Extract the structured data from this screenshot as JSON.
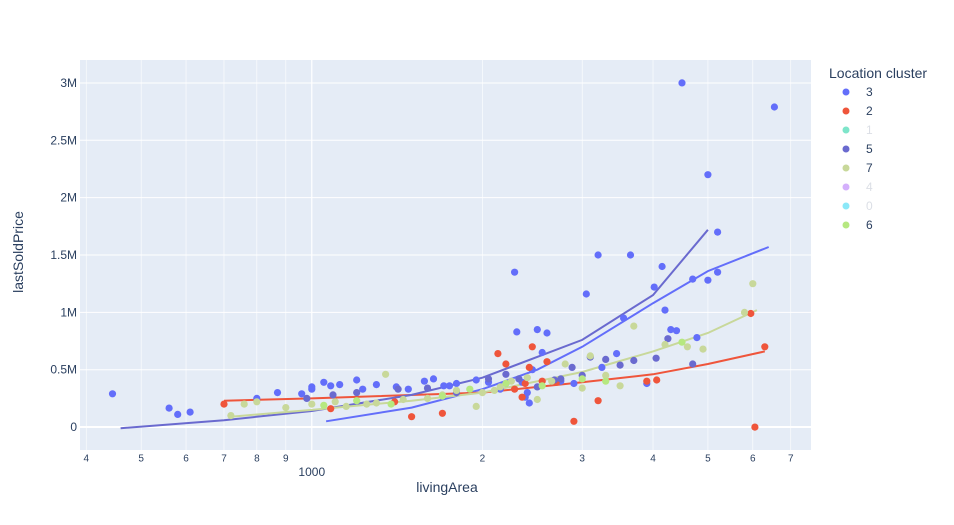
{
  "chart_data": {
    "type": "scatter",
    "xlabel": "livingArea",
    "ylabel": "lastSoldPrice",
    "x_scale": "log",
    "xlim": [
      390,
      7600
    ],
    "ylim": [
      -200000,
      3200000
    ],
    "grid": true,
    "legend_title": "Location cluster",
    "legend_position": "right",
    "x_major_ticks": [
      {
        "value": 1000,
        "label": "1000"
      }
    ],
    "x_minor_ticks": [
      {
        "value": 400,
        "label": "4"
      },
      {
        "value": 500,
        "label": "5"
      },
      {
        "value": 600,
        "label": "6"
      },
      {
        "value": 700,
        "label": "7"
      },
      {
        "value": 800,
        "label": "8"
      },
      {
        "value": 900,
        "label": "9"
      },
      {
        "value": 2000,
        "label": "2"
      },
      {
        "value": 3000,
        "label": "3"
      },
      {
        "value": 4000,
        "label": "4"
      },
      {
        "value": 5000,
        "label": "5"
      },
      {
        "value": 6000,
        "label": "6"
      },
      {
        "value": 7000,
        "label": "7"
      }
    ],
    "y_ticks": [
      {
        "value": 0,
        "label": "0"
      },
      {
        "value": 500000,
        "label": "0.5M"
      },
      {
        "value": 1000000,
        "label": "1M"
      },
      {
        "value": 1500000,
        "label": "1.5M"
      },
      {
        "value": 2000000,
        "label": "2M"
      },
      {
        "value": 2500000,
        "label": "2.5M"
      },
      {
        "value": 3000000,
        "label": "3M"
      }
    ],
    "series": [
      {
        "name": "3",
        "color": "#636efa",
        "visible": true,
        "points": [
          [
            445,
            290000
          ],
          [
            560,
            165000
          ],
          [
            580,
            110000
          ],
          [
            610,
            130000
          ],
          [
            800,
            250000
          ],
          [
            870,
            300000
          ],
          [
            960,
            290000
          ],
          [
            1000,
            330000
          ],
          [
            1000,
            350000
          ],
          [
            1050,
            390000
          ],
          [
            1080,
            360000
          ],
          [
            1120,
            370000
          ],
          [
            1200,
            410000
          ],
          [
            1230,
            330000
          ],
          [
            1300,
            370000
          ],
          [
            1410,
            350000
          ],
          [
            1480,
            330000
          ],
          [
            1580,
            400000
          ],
          [
            1640,
            420000
          ],
          [
            1710,
            360000
          ],
          [
            1750,
            360000
          ],
          [
            1800,
            380000
          ],
          [
            1950,
            410000
          ],
          [
            2050,
            390000
          ],
          [
            2150,
            330000
          ],
          [
            2200,
            380000
          ],
          [
            2280,
            1350000
          ],
          [
            2300,
            830000
          ],
          [
            2350,
            390000
          ],
          [
            2380,
            260000
          ],
          [
            2400,
            300000
          ],
          [
            2420,
            210000
          ],
          [
            2450,
            500000
          ],
          [
            2500,
            850000
          ],
          [
            2550,
            650000
          ],
          [
            2600,
            820000
          ],
          [
            2750,
            400000
          ],
          [
            2900,
            380000
          ],
          [
            3050,
            1160000
          ],
          [
            3200,
            1500000
          ],
          [
            3250,
            520000
          ],
          [
            3450,
            640000
          ],
          [
            3550,
            950000
          ],
          [
            3650,
            1500000
          ],
          [
            3900,
            380000
          ],
          [
            4020,
            1220000
          ],
          [
            4150,
            1400000
          ],
          [
            4200,
            1020000
          ],
          [
            4300,
            850000
          ],
          [
            4400,
            840000
          ],
          [
            4500,
            3000000
          ],
          [
            4700,
            1290000
          ],
          [
            4780,
            780000
          ],
          [
            5000,
            1280000
          ],
          [
            5000,
            2200000
          ],
          [
            5200,
            1350000
          ],
          [
            5200,
            1700000
          ],
          [
            6550,
            2790000
          ]
        ],
        "fit": [
          [
            1060,
            50000
          ],
          [
            1500,
            170000
          ],
          [
            2000,
            330000
          ],
          [
            2500,
            500000
          ],
          [
            3000,
            700000
          ],
          [
            4000,
            1080000
          ],
          [
            5000,
            1360000
          ],
          [
            6400,
            1570000
          ]
        ]
      },
      {
        "name": "2",
        "color": "#ef553b",
        "visible": true,
        "points": [
          [
            700,
            200000
          ],
          [
            1080,
            160000
          ],
          [
            1400,
            220000
          ],
          [
            1500,
            90000
          ],
          [
            1700,
            120000
          ],
          [
            2130,
            640000
          ],
          [
            2200,
            550000
          ],
          [
            2280,
            330000
          ],
          [
            2350,
            260000
          ],
          [
            2380,
            380000
          ],
          [
            2420,
            520000
          ],
          [
            2450,
            700000
          ],
          [
            2550,
            400000
          ],
          [
            2600,
            570000
          ],
          [
            2700,
            390000
          ],
          [
            2900,
            50000
          ],
          [
            3200,
            230000
          ],
          [
            3900,
            400000
          ],
          [
            4060,
            410000
          ],
          [
            5950,
            990000
          ],
          [
            6050,
            0
          ],
          [
            6300,
            700000
          ]
        ],
        "fit": [
          [
            700,
            230000
          ],
          [
            1000,
            250000
          ],
          [
            2000,
            300000
          ],
          [
            3000,
            390000
          ],
          [
            4000,
            460000
          ],
          [
            5000,
            550000
          ],
          [
            6300,
            660000
          ]
        ]
      },
      {
        "name": "1",
        "color": "#00cc96",
        "visible": false,
        "points": []
      },
      {
        "name": "5",
        "color": "#6a6acf",
        "visible": true,
        "points": [
          [
            980,
            250000
          ],
          [
            1090,
            280000
          ],
          [
            1200,
            300000
          ],
          [
            1420,
            330000
          ],
          [
            1600,
            340000
          ],
          [
            1800,
            300000
          ],
          [
            2050,
            420000
          ],
          [
            2200,
            460000
          ],
          [
            2320,
            420000
          ],
          [
            2500,
            350000
          ],
          [
            2680,
            410000
          ],
          [
            2750,
            420000
          ],
          [
            2880,
            520000
          ],
          [
            3000,
            450000
          ],
          [
            3100,
            610000
          ],
          [
            3300,
            590000
          ],
          [
            3500,
            540000
          ],
          [
            3700,
            580000
          ],
          [
            4050,
            600000
          ],
          [
            4250,
            770000
          ],
          [
            4700,
            550000
          ]
        ],
        "fit": [
          [
            460,
            -10000
          ],
          [
            700,
            60000
          ],
          [
            1000,
            140000
          ],
          [
            1500,
            280000
          ],
          [
            2000,
            430000
          ],
          [
            3000,
            760000
          ],
          [
            4000,
            1150000
          ],
          [
            5000,
            1720000
          ]
        ]
      },
      {
        "name": "7",
        "color": "#c8d89a",
        "visible": true,
        "points": [
          [
            720,
            100000
          ],
          [
            760,
            200000
          ],
          [
            800,
            220000
          ],
          [
            900,
            170000
          ],
          [
            1000,
            200000
          ],
          [
            1100,
            220000
          ],
          [
            1150,
            180000
          ],
          [
            1250,
            200000
          ],
          [
            1300,
            210000
          ],
          [
            1350,
            460000
          ],
          [
            1450,
            240000
          ],
          [
            1600,
            250000
          ],
          [
            1700,
            280000
          ],
          [
            1800,
            320000
          ],
          [
            1950,
            180000
          ],
          [
            2000,
            300000
          ],
          [
            2100,
            320000
          ],
          [
            2150,
            350000
          ],
          [
            2250,
            400000
          ],
          [
            2400,
            430000
          ],
          [
            2500,
            240000
          ],
          [
            2650,
            400000
          ],
          [
            2800,
            550000
          ],
          [
            3000,
            340000
          ],
          [
            3100,
            620000
          ],
          [
            3300,
            450000
          ],
          [
            3500,
            360000
          ],
          [
            3700,
            880000
          ],
          [
            4200,
            720000
          ],
          [
            4600,
            700000
          ],
          [
            4900,
            680000
          ],
          [
            5800,
            1000000
          ],
          [
            6000,
            1250000
          ]
        ],
        "fit": [
          [
            720,
            90000
          ],
          [
            1000,
            150000
          ],
          [
            1500,
            230000
          ],
          [
            2000,
            300000
          ],
          [
            3000,
            480000
          ],
          [
            4000,
            660000
          ],
          [
            5000,
            820000
          ],
          [
            6100,
            1020000
          ]
        ]
      },
      {
        "name": "4",
        "color": "#ab63fa",
        "visible": false,
        "points": []
      },
      {
        "name": "0",
        "color": "#19d3f3",
        "visible": false,
        "points": []
      },
      {
        "name": "6",
        "color": "#b6e880",
        "visible": true,
        "points": [
          [
            1050,
            190000
          ],
          [
            1200,
            230000
          ],
          [
            1380,
            200000
          ],
          [
            1700,
            270000
          ],
          [
            1900,
            330000
          ],
          [
            2200,
            380000
          ],
          [
            2550,
            360000
          ],
          [
            3000,
            420000
          ],
          [
            3300,
            400000
          ],
          [
            4500,
            740000
          ]
        ],
        "fit": []
      }
    ]
  }
}
